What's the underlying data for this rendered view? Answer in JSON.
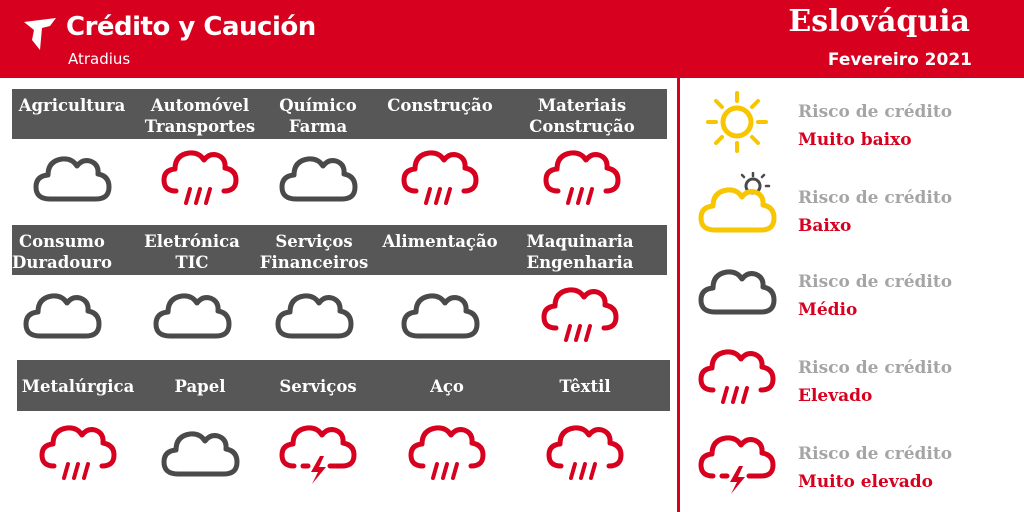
{
  "header": {
    "brand": "Crédito y Caución",
    "subbrand": "Atradius",
    "country": "Eslováquia",
    "date": "Fevereiro 2021"
  },
  "colors": {
    "brand_red": "#d7001e",
    "band_grey": "#575757",
    "cloud_grey": "#4a4a4a",
    "sun_yellow": "#f7c600",
    "legend_title_grey": "#a5a5a5"
  },
  "sectors": [
    {
      "lines": [
        "Agricultura"
      ],
      "risk": "medio",
      "icon": "cloud-icon"
    },
    {
      "lines": [
        "Automóvel",
        "Transportes"
      ],
      "risk": "elevado",
      "icon": "rain-cloud-icon"
    },
    {
      "lines": [
        "Químico",
        "Farma"
      ],
      "risk": "medio",
      "icon": "cloud-icon"
    },
    {
      "lines": [
        "Construção"
      ],
      "risk": "elevado",
      "icon": "rain-cloud-icon"
    },
    {
      "lines": [
        "Materiais",
        "Construção"
      ],
      "risk": "elevado",
      "icon": "rain-cloud-icon"
    },
    {
      "lines": [
        "Consumo",
        "Duradouro"
      ],
      "risk": "medio",
      "icon": "cloud-icon"
    },
    {
      "lines": [
        "Eletrónica",
        "TIC"
      ],
      "risk": "medio",
      "icon": "cloud-icon"
    },
    {
      "lines": [
        "Serviços",
        "Financeiros"
      ],
      "risk": "medio",
      "icon": "cloud-icon"
    },
    {
      "lines": [
        "Alimentação"
      ],
      "risk": "medio",
      "icon": "cloud-icon"
    },
    {
      "lines": [
        "Maquinaria",
        "Engenharia"
      ],
      "risk": "elevado",
      "icon": "rain-cloud-icon"
    },
    {
      "lines": [
        "Metalúrgica"
      ],
      "risk": "elevado",
      "icon": "rain-cloud-icon"
    },
    {
      "lines": [
        "Papel"
      ],
      "risk": "medio",
      "icon": "cloud-icon"
    },
    {
      "lines": [
        "Serviços"
      ],
      "risk": "muito_elevado",
      "icon": "storm-cloud-icon"
    },
    {
      "lines": [
        "Aço"
      ],
      "risk": "elevado",
      "icon": "rain-cloud-icon"
    },
    {
      "lines": [
        "Têxtil"
      ],
      "risk": "elevado",
      "icon": "rain-cloud-icon"
    }
  ],
  "legend": [
    {
      "title": "Risco de crédito",
      "value": "Muito baixo",
      "icon": "sun-icon"
    },
    {
      "title": "Risco de crédito",
      "value": "Baixo",
      "icon": "sun-cloud-icon"
    },
    {
      "title": "Risco de crédito",
      "value": "Médio",
      "icon": "cloud-icon"
    },
    {
      "title": "Risco de crédito",
      "value": "Elevado",
      "icon": "rain-cloud-icon"
    },
    {
      "title": "Risco de crédito",
      "value": "Muito elevado",
      "icon": "storm-cloud-icon"
    }
  ]
}
